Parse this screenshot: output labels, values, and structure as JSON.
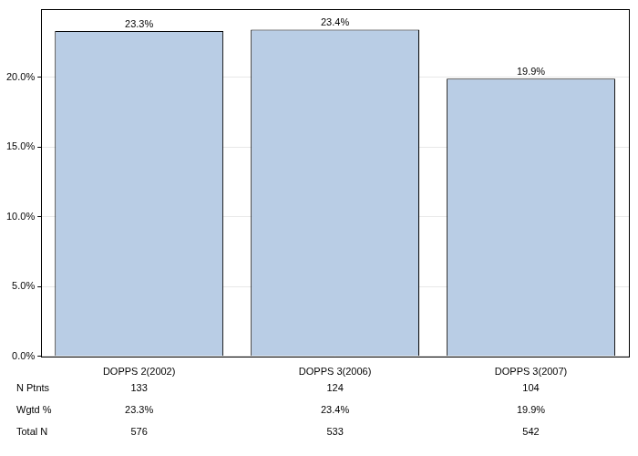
{
  "chart_data": {
    "type": "bar",
    "categories": [
      "DOPPS 2(2002)",
      "DOPPS 3(2006)",
      "DOPPS 3(2007)"
    ],
    "values": [
      23.3,
      23.4,
      19.9
    ],
    "value_labels": [
      "23.3%",
      "23.4%",
      "19.9%"
    ],
    "data_labels": true,
    "color": "#b9cde5",
    "ylim": [
      0,
      24.9
    ],
    "yticks": [
      {
        "value": 0,
        "label": "0.0%"
      },
      {
        "value": 5,
        "label": "5.0%"
      },
      {
        "value": 10,
        "label": "10.0%"
      },
      {
        "value": 15,
        "label": "15.0%"
      },
      {
        "value": 20,
        "label": "20.0%"
      }
    ],
    "grid": true,
    "table_rows": [
      {
        "label": "N Ptnts",
        "values": [
          "133",
          "124",
          "104"
        ]
      },
      {
        "label": "Wgtd %",
        "values": [
          "23.3%",
          "23.4%",
          "19.9%"
        ]
      },
      {
        "label": "Total N",
        "values": [
          "576",
          "533",
          "542"
        ]
      }
    ]
  }
}
